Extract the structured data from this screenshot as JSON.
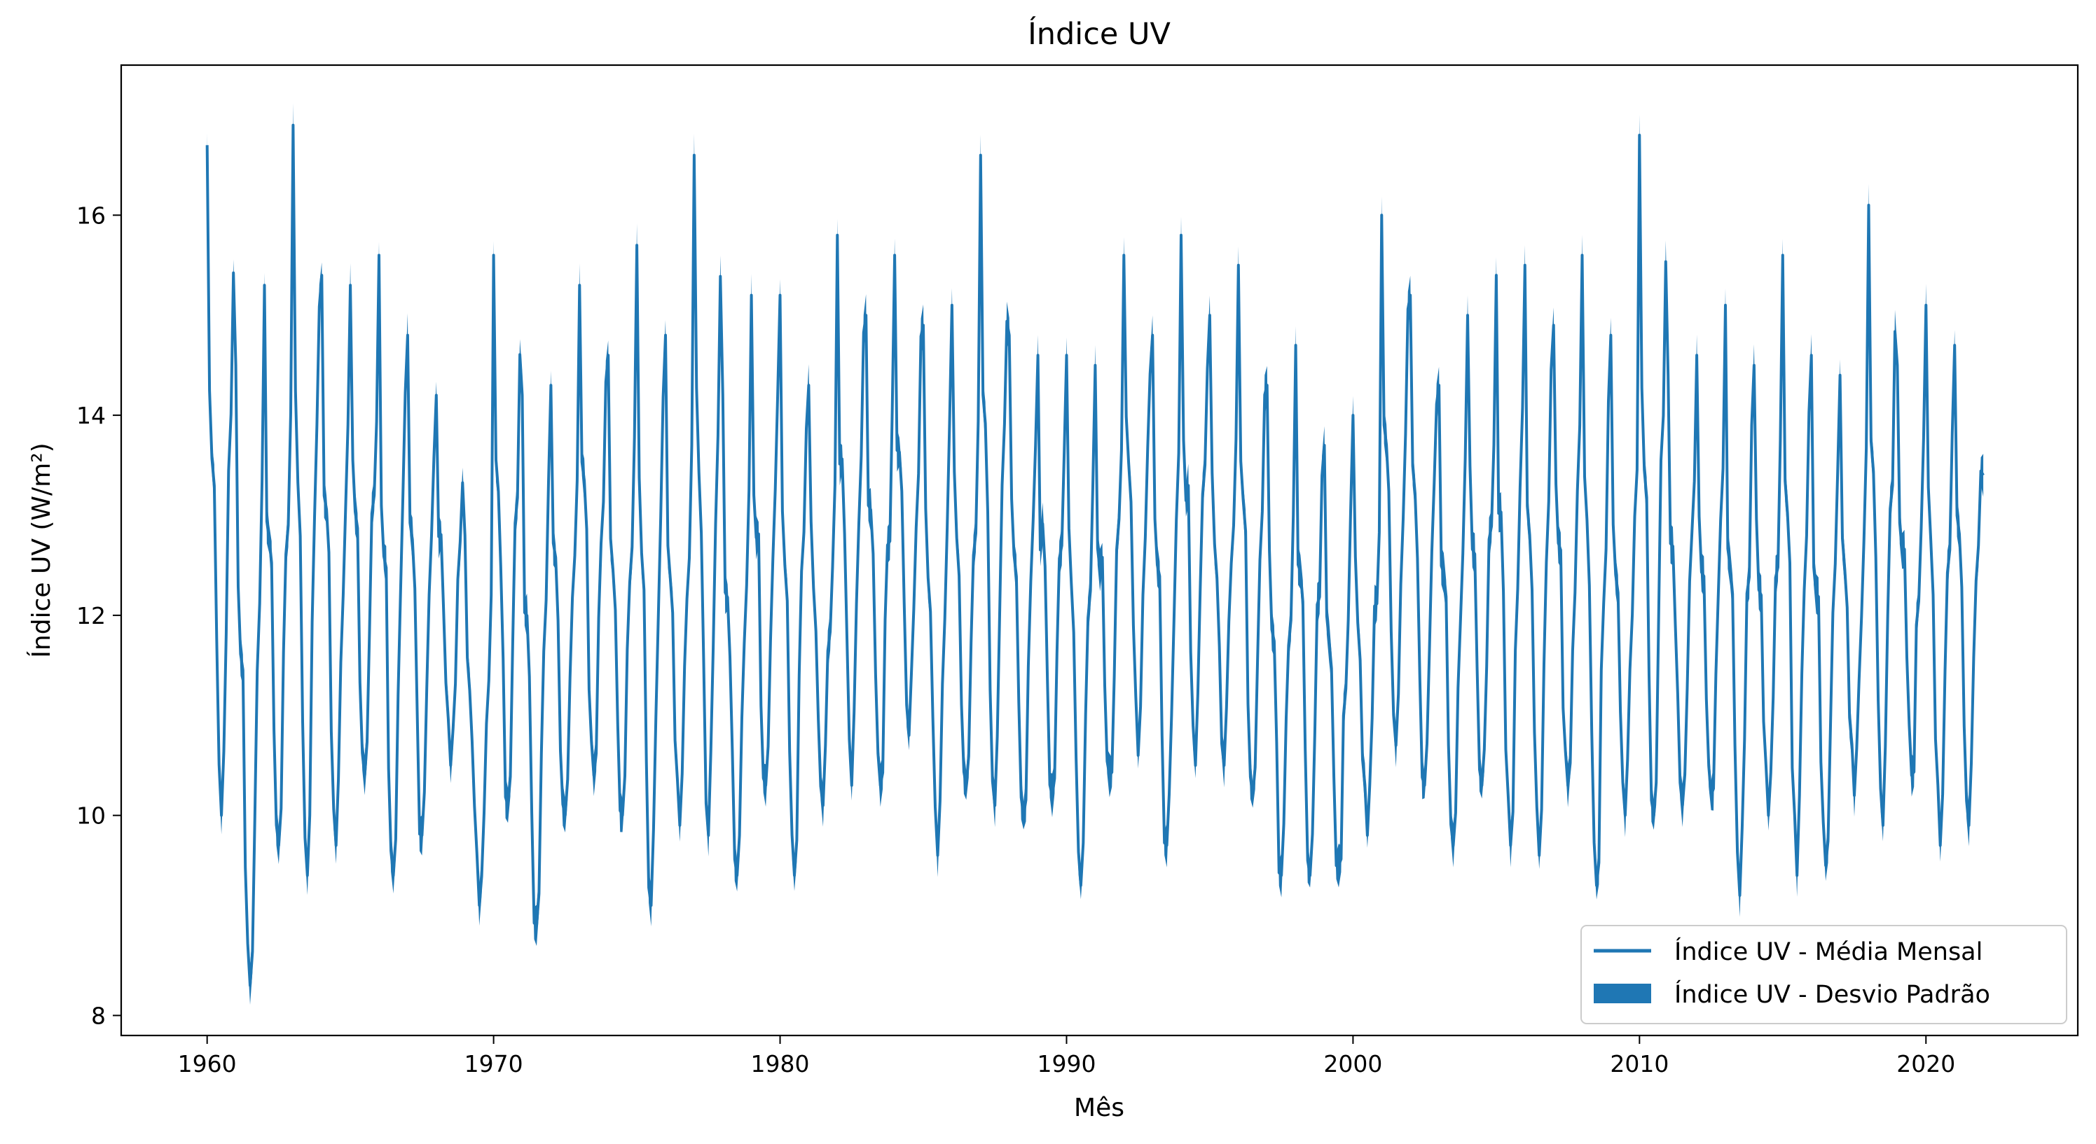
{
  "chart_data": {
    "type": "line",
    "title": "Índice UV",
    "xlabel": "Mês",
    "ylabel": "Índice UV (W/m²)",
    "xlim": [
      1957.0,
      2025.3
    ],
    "ylim": [
      7.8,
      17.5
    ],
    "x_ticks": [
      1960,
      1970,
      1980,
      1990,
      2000,
      2010,
      2020
    ],
    "x_tick_labels": [
      "1960",
      "1970",
      "1980",
      "1990",
      "2000",
      "2010",
      "2020"
    ],
    "y_ticks": [
      8,
      10,
      12,
      14,
      16
    ],
    "y_tick_labels": [
      "8",
      "10",
      "12",
      "14",
      "16"
    ],
    "grid": false,
    "legend": {
      "placement": "lower-right",
      "entries": [
        {
          "label": "Índice UV - Média Mensal",
          "kind": "line"
        },
        {
          "label": "Índice UV - Desvio Padrão",
          "kind": "patch"
        }
      ]
    },
    "series": [
      {
        "name": "Índice UV - Média Mensal",
        "color": "#1f77b4",
        "x_start": 1960.0,
        "x_step_months": 1,
        "annual_peaks_jan": [
          16.7,
          14.5,
          15.3,
          16.9,
          15.4,
          15.3,
          15.6,
          14.8,
          14.2,
          12.8,
          15.6,
          14.2,
          14.3,
          15.3,
          14.6,
          15.7,
          14.8,
          16.6,
          14.2,
          15.2,
          15.2,
          14.3,
          15.8,
          15.0,
          15.6,
          14.9,
          15.1,
          16.6,
          14.8,
          14.6,
          14.6,
          14.5,
          15.6,
          14.8,
          15.8,
          15.0,
          15.5,
          14.3,
          14.7,
          13.7,
          14.0,
          16.0,
          15.2,
          14.3,
          15.0,
          15.4,
          15.5,
          14.9,
          15.6,
          14.8,
          16.8,
          14.4,
          14.6,
          15.1,
          14.5,
          15.6,
          14.6,
          14.4,
          16.1,
          14.5,
          15.1,
          14.7,
          13.4
        ],
        "annual_troughs_jul": [
          10.0,
          8.3,
          9.7,
          9.4,
          9.7,
          10.4,
          9.4,
          9.8,
          10.5,
          9.1,
          10.1,
          8.9,
          10.0,
          10.4,
          10.0,
          9.1,
          9.9,
          9.8,
          9.4,
          10.3,
          9.4,
          10.1,
          10.3,
          10.3,
          10.8,
          9.6,
          10.3,
          10.1,
          10.0,
          10.2,
          9.3,
          10.4,
          10.6,
          9.7,
          10.5,
          10.5,
          10.2,
          9.4,
          9.4,
          9.5,
          9.8,
          10.7,
          10.3,
          9.7,
          10.3,
          9.7,
          9.6,
          10.3,
          9.3,
          10.0,
          10.0,
          10.1,
          10.2,
          9.2,
          10.0,
          9.4,
          9.5,
          10.2,
          9.9,
          10.4,
          9.7,
          9.9
        ]
      },
      {
        "name": "Índice UV - Desvio Padrão",
        "color": "#1f77b4",
        "kind": "band"
      }
    ]
  }
}
